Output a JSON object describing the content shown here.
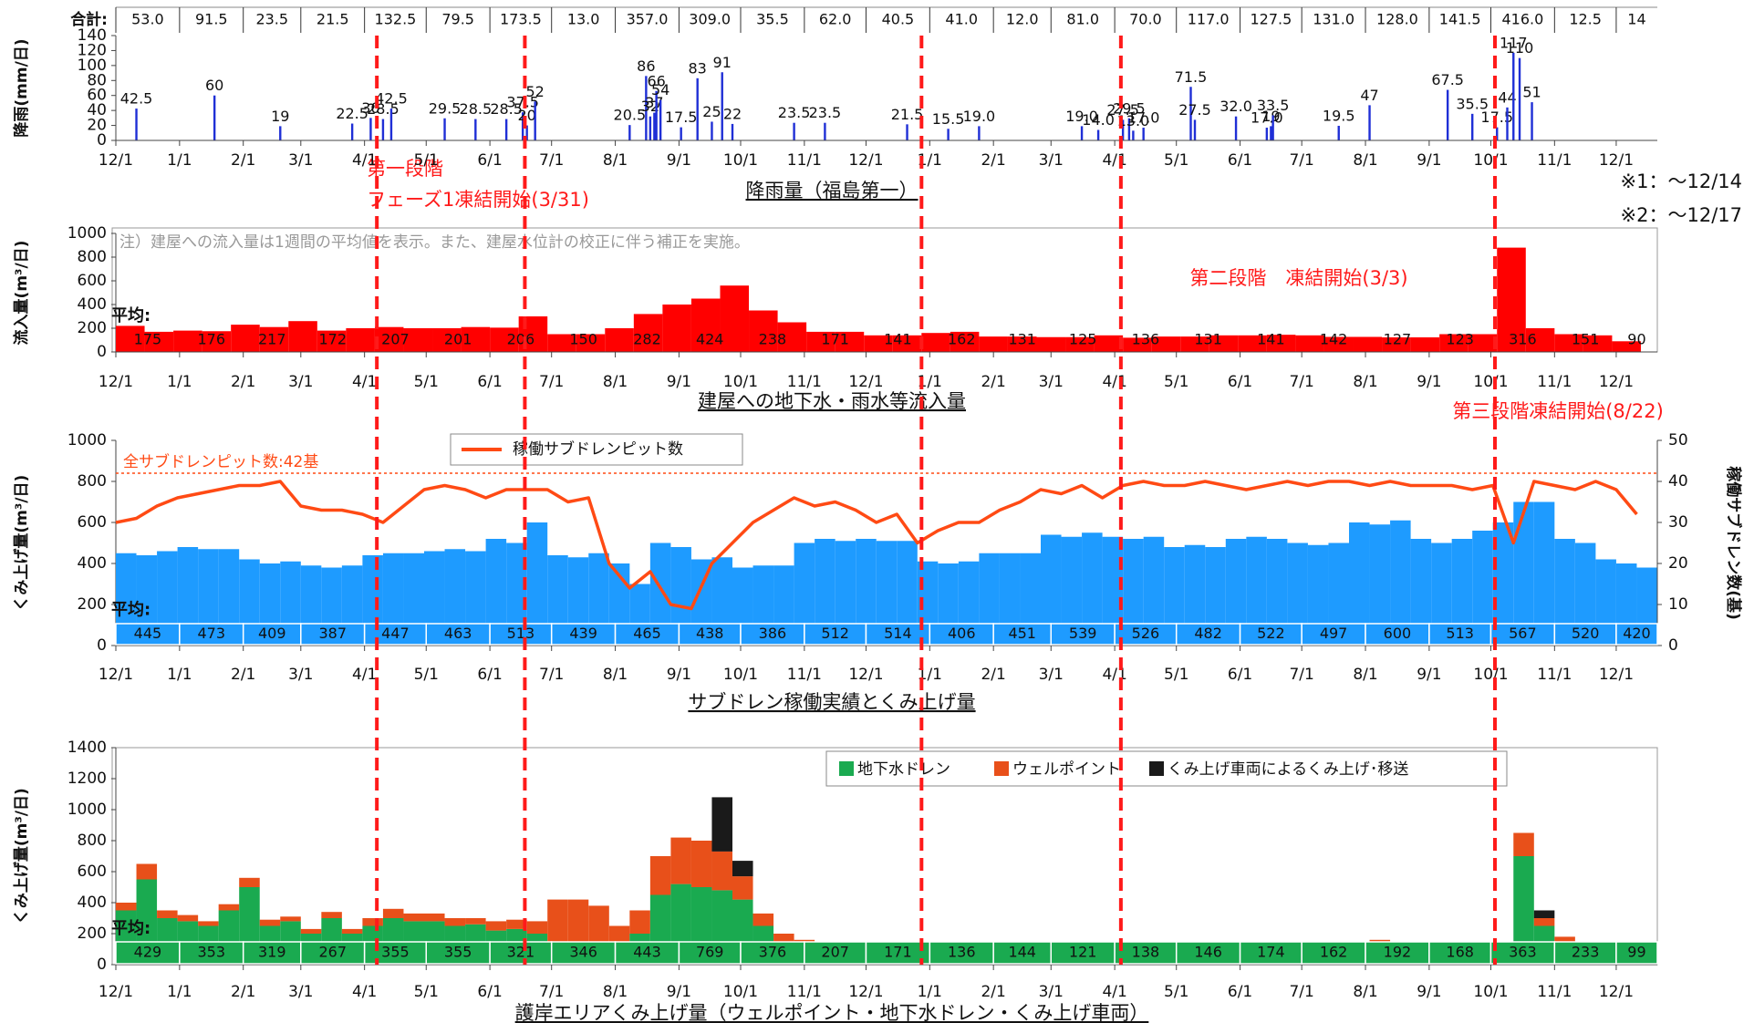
{
  "x_axis": {
    "xlim": [
      0,
      750
    ],
    "xticks": [
      {
        "value": 0,
        "label": "12/1"
      },
      {
        "value": 31,
        "label": "1/1"
      },
      {
        "value": 62,
        "label": "2/1"
      },
      {
        "value": 90,
        "label": "3/1"
      },
      {
        "value": 121,
        "label": "4/1"
      },
      {
        "value": 151,
        "label": "5/1"
      },
      {
        "value": 182,
        "label": "6/1"
      },
      {
        "value": 212,
        "label": "7/1"
      },
      {
        "value": 243,
        "label": "8/1"
      },
      {
        "value": 274,
        "label": "9/1"
      },
      {
        "value": 304,
        "label": "10/1"
      },
      {
        "value": 335,
        "label": "11/1"
      },
      {
        "value": 365,
        "label": "12/1"
      },
      {
        "value": 396,
        "label": "1/1"
      },
      {
        "value": 427,
        "label": "2/1"
      },
      {
        "value": 455,
        "label": "3/1"
      },
      {
        "value": 486,
        "label": "4/1"
      },
      {
        "value": 516,
        "label": "5/1"
      },
      {
        "value": 547,
        "label": "6/1"
      },
      {
        "value": 577,
        "label": "7/1"
      },
      {
        "value": 608,
        "label": "8/1"
      },
      {
        "value": 639,
        "label": "9/1"
      },
      {
        "value": 669,
        "label": "10/1"
      },
      {
        "value": 700,
        "label": "11/1"
      },
      {
        "value": 730,
        "label": "12/1"
      }
    ]
  },
  "phase_lines": [
    127,
    199,
    392,
    489,
    671
  ],
  "annotations": {
    "phase1_a": "第一段階",
    "phase1_b": "フェーズ1凍結開始(3/31)",
    "note1": "※1：～12/14",
    "note2": "※2：～12/17",
    "phase2": "第二段階　凍結開始(3/3)",
    "phase3": "第三段階凍結開始(8/22)"
  },
  "chart_data": [
    {
      "type": "stem",
      "title": "降雨量（福島第一）",
      "ylabel": "降雨(mm/日)",
      "color": "#1f2fd6",
      "ylim": [
        0,
        140
      ],
      "yticks": [
        0,
        20,
        40,
        60,
        80,
        100,
        120,
        140
      ],
      "totals_label": "合計:",
      "totals": [
        53,
        91.5,
        23.5,
        21.5,
        132.5,
        79.5,
        173.5,
        13,
        357,
        309,
        35.5,
        62,
        40.5,
        41,
        12,
        81,
        70,
        117,
        127.5,
        131,
        128,
        141.5,
        416,
        12.5,
        14
      ],
      "totals_labels": [
        "53.0",
        "91.5",
        "23.5",
        "21.5",
        "132.5",
        "79.5",
        "173.5",
        "13.0",
        "357.0",
        "309.0",
        "35.5",
        "62.0",
        "40.5",
        "41.0",
        "12.0",
        "81.0",
        "70.0",
        "117.0",
        "127.5",
        "131.0",
        "128.0",
        "141.5",
        "416.0",
        "12.5",
        "14"
      ],
      "x": [
        10,
        48,
        80,
        115,
        124,
        130,
        134,
        160,
        175,
        190,
        198,
        200,
        204,
        250,
        258,
        260,
        262,
        263,
        265,
        275,
        283,
        290,
        295,
        300,
        330,
        345,
        385,
        405,
        420,
        470,
        478,
        490,
        493,
        495,
        500,
        523,
        525,
        545,
        560,
        562,
        563,
        595,
        610,
        648,
        660,
        672,
        677,
        680,
        683,
        689
      ],
      "values": [
        42.5,
        60,
        19,
        22.5,
        30,
        28.5,
        42.5,
        29.5,
        28.5,
        28.5,
        37.5,
        20,
        52,
        20.5,
        86,
        32,
        37,
        66,
        54,
        17.5,
        83,
        25,
        91,
        22,
        23.5,
        23.5,
        21.5,
        15.5,
        19,
        19,
        14,
        27.5,
        29.5,
        13,
        17,
        71.5,
        27.5,
        32,
        17,
        19,
        33.5,
        19.5,
        47,
        67.5,
        35.5,
        17.5,
        44,
        117,
        110,
        51
      ],
      "value_labels": [
        "42.5",
        "60",
        "19",
        "22.5",
        "30",
        "28.5",
        "42.5",
        "29.5",
        "28.5",
        "28.5",
        "37.5",
        "20",
        "52",
        "20.5",
        "86",
        "32",
        "37",
        "66",
        "54",
        "17.5",
        "83",
        "25",
        "91",
        "22",
        "23.5",
        "23.5",
        "21.5",
        "15.5",
        "19.0",
        "19.0",
        "14.0",
        "27.5",
        "29.5",
        "13.0",
        "17.0",
        "71.5",
        "27.5",
        "32.0",
        "17.0",
        "19",
        "33.5",
        "19.5",
        "47",
        "67.5",
        "35.5",
        "17.5",
        "44",
        "117",
        "110",
        "51"
      ]
    },
    {
      "type": "bar",
      "title": "建屋への地下水・雨水等流入量",
      "ylabel": "流入量(m³/日)",
      "color": "#ff0000",
      "note": "注）建屋への流入量は1週間の平均値を表示。また、建屋水位計の校正に伴う補正を実施。",
      "ylim": [
        0,
        1000
      ],
      "yticks": [
        0,
        200,
        400,
        600,
        800,
        1000
      ],
      "avg_label": "平均:",
      "averages": [
        175,
        176,
        217,
        172,
        207,
        201,
        206,
        150,
        282,
        424,
        238,
        171,
        141,
        162,
        131,
        125,
        136,
        131,
        141,
        142,
        127,
        123,
        316,
        151,
        90
      ],
      "x": [
        0,
        14,
        28,
        42,
        56,
        70,
        84,
        98,
        112,
        126,
        140,
        154,
        168,
        182,
        196,
        210,
        224,
        238,
        252,
        266,
        280,
        294,
        308,
        322,
        336,
        350,
        364,
        378,
        392,
        406,
        420,
        434,
        448,
        462,
        476,
        490,
        504,
        518,
        532,
        546,
        560,
        574,
        588,
        602,
        616,
        630,
        644,
        658,
        672,
        686,
        700,
        714,
        728
      ],
      "values": [
        220,
        170,
        180,
        175,
        230,
        210,
        260,
        180,
        200,
        210,
        200,
        200,
        210,
        205,
        300,
        150,
        150,
        200,
        320,
        400,
        450,
        560,
        350,
        250,
        170,
        170,
        140,
        140,
        160,
        170,
        130,
        130,
        125,
        125,
        140,
        120,
        130,
        130,
        140,
        140,
        145,
        140,
        127,
        127,
        123,
        123,
        150,
        150,
        880,
        200,
        150,
        140,
        90
      ]
    },
    {
      "type": "combo",
      "title": "サブドレン稼働実績とくみ上げ量",
      "ylabel": "くみ上げ量(m³/日)",
      "y2label": "稼働サブドレン数(基)",
      "color": "#1e9bff",
      "ylim": [
        0,
        1000
      ],
      "yticks": [
        0,
        200,
        400,
        600,
        800,
        1000
      ],
      "y2lim": [
        0,
        50
      ],
      "y2ticks": [
        0,
        10,
        20,
        30,
        40,
        50
      ],
      "reference": {
        "value": 42,
        "label": "全サブドレンピット数:42基",
        "axis": "y2"
      },
      "avg_label": "平均:",
      "averages": [
        445,
        473,
        409,
        387,
        447,
        463,
        513,
        439,
        465,
        438,
        386,
        512,
        514,
        406,
        451,
        539,
        526,
        482,
        522,
        497,
        600,
        513,
        567,
        520,
        420
      ],
      "x": [
        0,
        10,
        20,
        30,
        40,
        50,
        60,
        70,
        80,
        90,
        100,
        110,
        120,
        130,
        140,
        150,
        160,
        170,
        180,
        190,
        200,
        210,
        220,
        230,
        240,
        250,
        260,
        270,
        280,
        290,
        300,
        310,
        320,
        330,
        340,
        350,
        360,
        370,
        380,
        390,
        400,
        410,
        420,
        430,
        440,
        450,
        460,
        470,
        480,
        490,
        500,
        510,
        520,
        530,
        540,
        550,
        560,
        570,
        580,
        590,
        600,
        610,
        620,
        630,
        640,
        650,
        660,
        670,
        680,
        690,
        700,
        710,
        720,
        730,
        740
      ],
      "values": [
        450,
        440,
        460,
        480,
        470,
        470,
        420,
        400,
        410,
        390,
        380,
        390,
        440,
        450,
        450,
        460,
        470,
        460,
        520,
        500,
        600,
        440,
        430,
        450,
        400,
        300,
        500,
        480,
        420,
        430,
        380,
        390,
        390,
        500,
        520,
        510,
        520,
        510,
        510,
        410,
        400,
        410,
        450,
        450,
        450,
        540,
        530,
        550,
        530,
        520,
        530,
        480,
        490,
        480,
        520,
        530,
        520,
        500,
        490,
        500,
        600,
        590,
        610,
        520,
        500,
        520,
        560,
        600,
        700,
        700,
        520,
        500,
        420,
        400,
        380
      ],
      "series": [
        {
          "name": "稼働サブドレンピット数",
          "color": "#ff4a14",
          "axis": "y2",
          "values": [
            30,
            31,
            34,
            36,
            37,
            38,
            39,
            39,
            40,
            34,
            33,
            33,
            32,
            30,
            34,
            38,
            39,
            38,
            36,
            38,
            38,
            38,
            35,
            36,
            20,
            14,
            18,
            10,
            9,
            20,
            25,
            30,
            33,
            36,
            34,
            35,
            33,
            30,
            32,
            25,
            28,
            30,
            30,
            33,
            35,
            38,
            37,
            39,
            36,
            39,
            40,
            39,
            39,
            40,
            39,
            38,
            39,
            40,
            39,
            40,
            40,
            39,
            40,
            39,
            39,
            39,
            38,
            39,
            25,
            40,
            39,
            38,
            40,
            38,
            32
          ]
        }
      ]
    },
    {
      "type": "stacked",
      "title": "護岸エリアくみ上げ量（ウェルポイント・地下水ドレン・くみ上げ車両）",
      "ylabel": "くみ上げ量(m³/日)",
      "ylim": [
        0,
        1400
      ],
      "yticks": [
        0,
        200,
        400,
        600,
        800,
        1000,
        1200,
        1400
      ],
      "avg_label": "平均:",
      "averages": [
        429,
        353,
        319,
        267,
        355,
        355,
        321,
        346,
        443,
        769,
        376,
        207,
        171,
        136,
        144,
        121,
        138,
        146,
        174,
        162,
        192,
        168,
        363,
        233,
        99
      ],
      "x": [
        0,
        10,
        20,
        30,
        40,
        50,
        60,
        70,
        80,
        90,
        100,
        110,
        120,
        130,
        140,
        150,
        160,
        170,
        180,
        190,
        200,
        210,
        220,
        230,
        240,
        250,
        260,
        270,
        280,
        290,
        300,
        310,
        320,
        330,
        340,
        350,
        360,
        370,
        380,
        390,
        400,
        410,
        420,
        430,
        440,
        450,
        460,
        470,
        480,
        490,
        500,
        510,
        520,
        530,
        540,
        550,
        560,
        570,
        580,
        590,
        600,
        610,
        620,
        630,
        640,
        650,
        660,
        670,
        680,
        690,
        700,
        710,
        720,
        730,
        740
      ],
      "series": [
        {
          "name": "地下水ドレン",
          "color": "#1aaa50",
          "values": [
            350,
            550,
            300,
            280,
            250,
            350,
            500,
            250,
            280,
            200,
            300,
            200,
            250,
            300,
            280,
            280,
            250,
            260,
            220,
            230,
            200,
            120,
            100,
            130,
            100,
            200,
            450,
            520,
            500,
            480,
            420,
            250,
            150,
            120,
            100,
            90,
            80,
            70,
            70,
            70,
            70,
            70,
            80,
            70,
            70,
            60,
            60,
            60,
            60,
            60,
            60,
            60,
            70,
            60,
            70,
            80,
            80,
            70,
            70,
            70,
            90,
            100,
            80,
            80,
            80,
            70,
            70,
            80,
            700,
            250,
            150,
            100,
            60,
            50,
            40
          ]
        },
        {
          "name": "ウェルポイント",
          "color": "#e8501a",
          "values": [
            50,
            100,
            50,
            40,
            30,
            40,
            60,
            40,
            30,
            30,
            40,
            30,
            50,
            60,
            50,
            50,
            50,
            40,
            60,
            60,
            80,
            300,
            320,
            250,
            150,
            150,
            250,
            300,
            300,
            250,
            150,
            80,
            50,
            40,
            30,
            30,
            30,
            30,
            30,
            40,
            40,
            40,
            40,
            40,
            40,
            40,
            40,
            40,
            40,
            40,
            40,
            50,
            50,
            50,
            50,
            50,
            50,
            50,
            50,
            50,
            60,
            60,
            60,
            60,
            60,
            60,
            50,
            50,
            150,
            50,
            30,
            30,
            30,
            30,
            20
          ]
        },
        {
          "name": "くみ上げ車両によるくみ上げ･移送",
          "color": "#1a1a1a",
          "values": [
            0,
            0,
            0,
            0,
            0,
            0,
            0,
            0,
            0,
            0,
            0,
            0,
            0,
            0,
            0,
            0,
            0,
            0,
            0,
            0,
            0,
            0,
            0,
            0,
            0,
            0,
            0,
            0,
            0,
            350,
            100,
            0,
            0,
            0,
            0,
            0,
            0,
            0,
            0,
            0,
            0,
            0,
            0,
            0,
            0,
            0,
            0,
            0,
            0,
            0,
            0,
            0,
            0,
            0,
            0,
            0,
            0,
            0,
            0,
            0,
            0,
            0,
            0,
            0,
            0,
            0,
            0,
            0,
            0,
            50,
            0,
            0,
            0,
            0,
            0
          ]
        }
      ]
    }
  ]
}
